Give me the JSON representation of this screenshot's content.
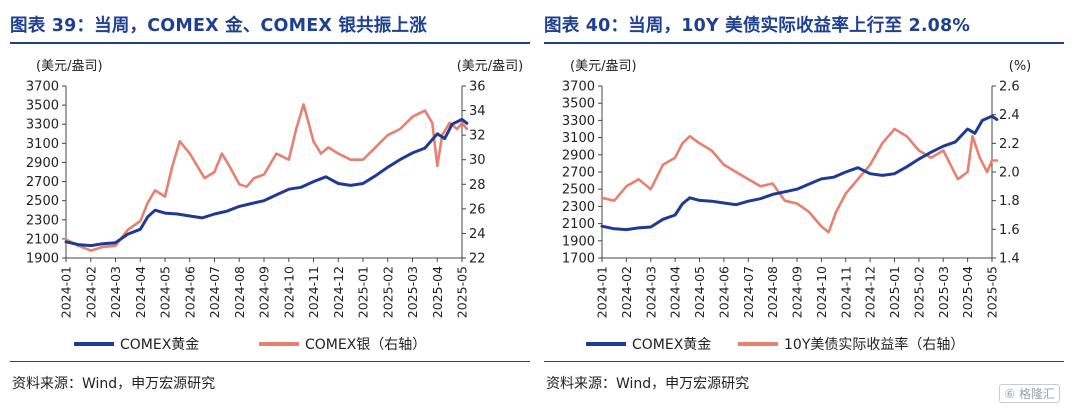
{
  "left": {
    "title": "图表 39：当周，COMEX 金、COMEX 银共振上涨",
    "source": "资料来源：Wind，申万宏源研究",
    "unit_left": "(美元/盎司)",
    "unit_right": "(美元/盎司)",
    "legend": [
      "COMEX黄金",
      "COMEX银（右轴）"
    ],
    "colors": {
      "primary": "#1f3a93",
      "secondary": "#e8806f"
    },
    "chart_data": {
      "type": "line",
      "x_ticks": [
        "2024-01",
        "2024-02",
        "2024-03",
        "2024-04",
        "2024-05",
        "2024-06",
        "2024-07",
        "2024-08",
        "2024-09",
        "2024-10",
        "2024-11",
        "2024-12",
        "2025-01",
        "2025-02",
        "2025-03",
        "2025-04",
        "2025-05"
      ],
      "yleft_ticks": [
        1900,
        2100,
        2300,
        2500,
        2700,
        2900,
        3100,
        3300,
        3500,
        3700
      ],
      "yright_ticks": [
        22,
        24,
        26,
        28,
        30,
        32,
        34,
        36
      ],
      "ylim_left": [
        1900,
        3700
      ],
      "ylim_right": [
        22,
        36
      ],
      "series": [
        {
          "name": "COMEX黄金",
          "axis": "left",
          "x": [
            0,
            0.5,
            1,
            1.5,
            2,
            2.5,
            3,
            3.3,
            3.6,
            4,
            4.5,
            5,
            5.5,
            6,
            6.5,
            7,
            7.5,
            8,
            8.5,
            9,
            9.5,
            10,
            10.5,
            11,
            11.5,
            12,
            12.5,
            13,
            13.5,
            14,
            14.5,
            15,
            15.3,
            15.6,
            16,
            16.2
          ],
          "y": [
            2070,
            2040,
            2030,
            2050,
            2060,
            2150,
            2200,
            2330,
            2400,
            2370,
            2360,
            2340,
            2320,
            2360,
            2390,
            2440,
            2470,
            2500,
            2560,
            2620,
            2640,
            2700,
            2750,
            2680,
            2660,
            2680,
            2760,
            2850,
            2930,
            3000,
            3050,
            3200,
            3150,
            3300,
            3350,
            3310
          ]
        },
        {
          "name": "COMEX银（右轴）",
          "axis": "right",
          "x": [
            0,
            0.5,
            1,
            1.5,
            2,
            2.5,
            3,
            3.3,
            3.6,
            4,
            4.3,
            4.6,
            5,
            5.3,
            5.6,
            6,
            6.3,
            6.6,
            7,
            7.3,
            7.6,
            8,
            8.5,
            9,
            9.3,
            9.6,
            10,
            10.3,
            10.6,
            11,
            11.5,
            12,
            12.5,
            13,
            13.5,
            14,
            14.5,
            14.8,
            15,
            15.2,
            15.5,
            15.8,
            16,
            16.2
          ],
          "y": [
            23.5,
            23.0,
            22.6,
            22.9,
            23.0,
            24.3,
            25.0,
            26.5,
            27.5,
            27.0,
            29.5,
            31.5,
            30.5,
            29.5,
            28.5,
            29.0,
            30.5,
            29.5,
            28.0,
            27.8,
            28.5,
            28.8,
            30.5,
            30.0,
            32.5,
            34.5,
            31.5,
            30.5,
            31.0,
            30.5,
            30.0,
            30.0,
            31.0,
            32.0,
            32.5,
            33.5,
            34.0,
            33.0,
            29.5,
            32.0,
            33.0,
            32.5,
            33.0,
            32.5
          ]
        }
      ]
    }
  },
  "right": {
    "title": "图表 40：当周，10Y 美债实际收益率上行至 2.08%",
    "source": "资料来源：Wind，申万宏源研究",
    "unit_left": "(美元/盎司)",
    "unit_right": "(%)",
    "legend": [
      "COMEX黄金",
      "10Y美债实际收益率（右轴）"
    ],
    "colors": {
      "primary": "#1f3a93",
      "secondary": "#e8806f"
    },
    "chart_data": {
      "type": "line",
      "x_ticks": [
        "2024-01",
        "2024-02",
        "2024-03",
        "2024-04",
        "2024-05",
        "2024-06",
        "2024-07",
        "2024-08",
        "2024-09",
        "2024-10",
        "2024-11",
        "2024-12",
        "2025-01",
        "2025-02",
        "2025-03",
        "2025-04",
        "2025-05"
      ],
      "yleft_ticks": [
        1700,
        1900,
        2100,
        2300,
        2500,
        2700,
        2900,
        3100,
        3300,
        3500,
        3700
      ],
      "yright_ticks": [
        1.4,
        1.6,
        1.8,
        2.0,
        2.2,
        2.4,
        2.6
      ],
      "ylim_left": [
        1700,
        3700
      ],
      "ylim_right": [
        1.4,
        2.6
      ],
      "series": [
        {
          "name": "COMEX黄金",
          "axis": "left",
          "x": [
            0,
            0.5,
            1,
            1.5,
            2,
            2.5,
            3,
            3.3,
            3.6,
            4,
            4.5,
            5,
            5.5,
            6,
            6.5,
            7,
            7.5,
            8,
            8.5,
            9,
            9.5,
            10,
            10.5,
            11,
            11.5,
            12,
            12.5,
            13,
            13.5,
            14,
            14.5,
            15,
            15.3,
            15.6,
            16,
            16.2
          ],
          "y": [
            2070,
            2040,
            2030,
            2050,
            2060,
            2150,
            2200,
            2330,
            2400,
            2370,
            2360,
            2340,
            2320,
            2360,
            2390,
            2440,
            2470,
            2500,
            2560,
            2620,
            2640,
            2700,
            2750,
            2680,
            2660,
            2680,
            2760,
            2850,
            2930,
            3000,
            3050,
            3200,
            3150,
            3300,
            3350,
            3310
          ]
        },
        {
          "name": "10Y美债实际收益率（右轴）",
          "axis": "right",
          "x": [
            0,
            0.5,
            1,
            1.5,
            2,
            2.5,
            3,
            3.3,
            3.6,
            4,
            4.5,
            5,
            5.5,
            6,
            6.5,
            7,
            7.5,
            8,
            8.5,
            9,
            9.3,
            9.6,
            10,
            10.5,
            11,
            11.5,
            12,
            12.5,
            13,
            13.5,
            14,
            14.3,
            14.6,
            15,
            15.2,
            15.5,
            15.8,
            16,
            16.2
          ],
          "y": [
            1.82,
            1.8,
            1.9,
            1.95,
            1.88,
            2.05,
            2.1,
            2.2,
            2.25,
            2.2,
            2.15,
            2.05,
            2.0,
            1.95,
            1.9,
            1.92,
            1.8,
            1.78,
            1.72,
            1.62,
            1.58,
            1.72,
            1.85,
            1.95,
            2.05,
            2.2,
            2.3,
            2.25,
            2.15,
            2.1,
            2.15,
            2.05,
            1.95,
            2.0,
            2.25,
            2.1,
            2.0,
            2.08,
            2.08
          ]
        }
      ]
    }
  }
}
